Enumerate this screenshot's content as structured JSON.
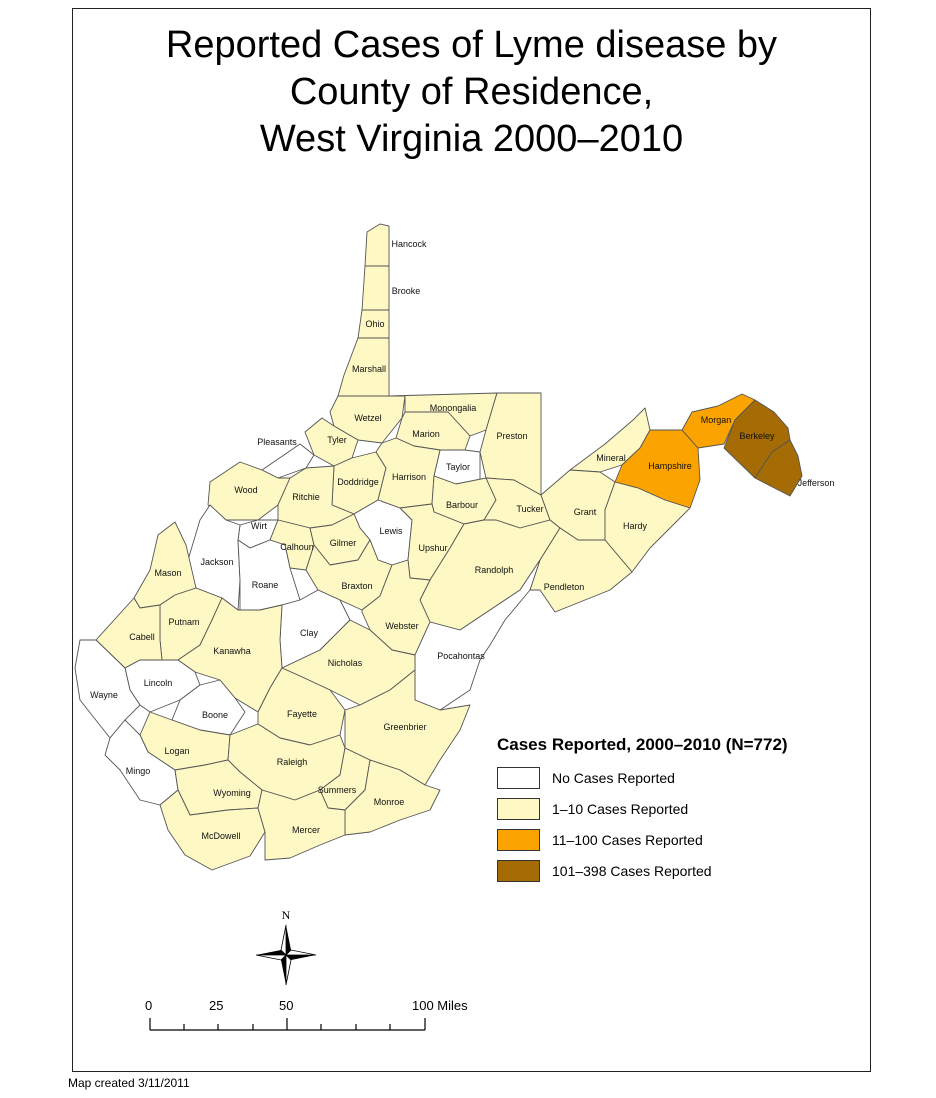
{
  "title": {
    "line1": "Reported Cases of Lyme disease by",
    "line2": "County of Residence,",
    "line3": "West Virginia 2000–2010"
  },
  "colors": {
    "none": "#ffffff",
    "low": "#fdf8c4",
    "mid": "#fba300",
    "high": "#a56c06",
    "border": "#555555"
  },
  "legend": {
    "title": "Cases Reported, 2000–2010 (N=772)",
    "items": [
      {
        "label": "No Cases Reported",
        "class": "none"
      },
      {
        "label": "1–10 Cases Reported",
        "class": "low"
      },
      {
        "label": "11–100 Cases Reported",
        "class": "mid"
      },
      {
        "label": "101–398 Cases Reported",
        "class": "high"
      }
    ]
  },
  "counties": [
    {
      "name": "Hancock",
      "class": "low"
    },
    {
      "name": "Brooke",
      "class": "low"
    },
    {
      "name": "Ohio",
      "class": "low"
    },
    {
      "name": "Marshall",
      "class": "low"
    },
    {
      "name": "Wetzel",
      "class": "low"
    },
    {
      "name": "Monongalia",
      "class": "low"
    },
    {
      "name": "Preston",
      "class": "low"
    },
    {
      "name": "Tyler",
      "class": "low"
    },
    {
      "name": "Marion",
      "class": "low"
    },
    {
      "name": "Pleasants",
      "class": "none"
    },
    {
      "name": "Taylor",
      "class": "none"
    },
    {
      "name": "Doddridge",
      "class": "low"
    },
    {
      "name": "Harrison",
      "class": "low"
    },
    {
      "name": "Wood",
      "class": "low"
    },
    {
      "name": "Ritchie",
      "class": "low"
    },
    {
      "name": "Barbour",
      "class": "low"
    },
    {
      "name": "Tucker",
      "class": "low"
    },
    {
      "name": "Mineral",
      "class": "low"
    },
    {
      "name": "Hampshire",
      "class": "mid"
    },
    {
      "name": "Morgan",
      "class": "mid"
    },
    {
      "name": "Berkeley",
      "class": "high"
    },
    {
      "name": "Jefferson",
      "class": "high"
    },
    {
      "name": "Grant",
      "class": "low"
    },
    {
      "name": "Hardy",
      "class": "low"
    },
    {
      "name": "Wirt",
      "class": "none"
    },
    {
      "name": "Lewis",
      "class": "none"
    },
    {
      "name": "Upshur",
      "class": "low"
    },
    {
      "name": "Calhoun",
      "class": "low"
    },
    {
      "name": "Gilmer",
      "class": "low"
    },
    {
      "name": "Jackson",
      "class": "none"
    },
    {
      "name": "Roane",
      "class": "none"
    },
    {
      "name": "Mason",
      "class": "low"
    },
    {
      "name": "Randolph",
      "class": "low"
    },
    {
      "name": "Pendleton",
      "class": "low"
    },
    {
      "name": "Braxton",
      "class": "low"
    },
    {
      "name": "Putnam",
      "class": "low"
    },
    {
      "name": "Clay",
      "class": "none"
    },
    {
      "name": "Webster",
      "class": "low"
    },
    {
      "name": "Cabell",
      "class": "low"
    },
    {
      "name": "Kanawha",
      "class": "low"
    },
    {
      "name": "Pocahontas",
      "class": "none"
    },
    {
      "name": "Nicholas",
      "class": "low"
    },
    {
      "name": "Lincoln",
      "class": "none"
    },
    {
      "name": "Wayne",
      "class": "none"
    },
    {
      "name": "Boone",
      "class": "none"
    },
    {
      "name": "Fayette",
      "class": "low"
    },
    {
      "name": "Greenbrier",
      "class": "low"
    },
    {
      "name": "Logan",
      "class": "low"
    },
    {
      "name": "Mingo",
      "class": "none"
    },
    {
      "name": "Raleigh",
      "class": "low"
    },
    {
      "name": "Wyoming",
      "class": "low"
    },
    {
      "name": "Summers",
      "class": "low"
    },
    {
      "name": "Monroe",
      "class": "low"
    },
    {
      "name": "McDowell",
      "class": "low"
    },
    {
      "name": "Mercer",
      "class": "low"
    }
  ],
  "compass": {
    "label": "N"
  },
  "scale": {
    "ticks": [
      "0",
      "25",
      "50",
      "100 Miles"
    ]
  },
  "footer": "Map created 3/11/2011"
}
